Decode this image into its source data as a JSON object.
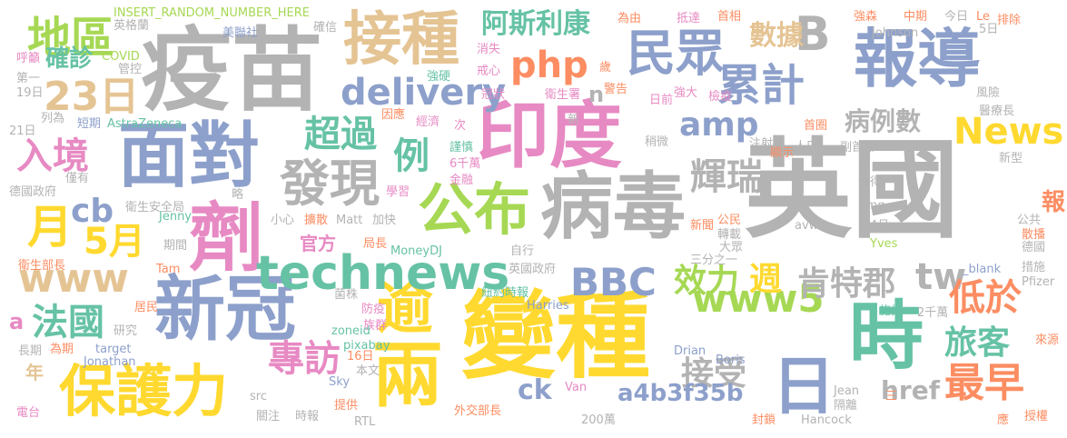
{
  "palette": {
    "gray": "#b3b3b3",
    "yellow": "#ffd92f",
    "blue": "#8da0cb",
    "green": "#66c2a5",
    "pink": "#e78ac3",
    "orange": "#fc8d62",
    "tan": "#e5c494",
    "lime": "#a6d854"
  },
  "words": [
    {
      "text": "英國",
      "color": "gray"
    },
    {
      "text": "變種",
      "color": "yellow"
    },
    {
      "text": "疫苗",
      "color": "gray"
    },
    {
      "text": "印度",
      "color": "pink"
    },
    {
      "text": "劑",
      "color": "pink"
    },
    {
      "text": "面對",
      "color": "blue"
    },
    {
      "text": "新冠",
      "color": "blue"
    },
    {
      "text": "病毒",
      "color": "gray"
    },
    {
      "text": "報導",
      "color": "blue"
    },
    {
      "text": "時",
      "color": "green"
    },
    {
      "text": "逾",
      "color": "yellow"
    },
    {
      "text": "兩",
      "color": "yellow"
    },
    {
      "text": "接種",
      "color": "tan"
    },
    {
      "text": "保護力",
      "color": "yellow"
    },
    {
      "text": "technews",
      "color": "green"
    },
    {
      "text": "公布",
      "color": "lime"
    },
    {
      "text": "民眾",
      "color": "blue"
    },
    {
      "text": "發現",
      "color": "gray"
    },
    {
      "text": "www",
      "color": "tan"
    },
    {
      "text": "www5",
      "color": "lime"
    },
    {
      "text": "BBC",
      "color": "blue"
    },
    {
      "text": "日",
      "color": "blue"
    },
    {
      "text": "地區",
      "color": "lime"
    },
    {
      "text": "23日",
      "color": "tan"
    },
    {
      "text": "累計",
      "color": "blue"
    },
    {
      "text": "delivery",
      "color": "blue"
    },
    {
      "text": "php",
      "color": "orange"
    },
    {
      "text": "B",
      "color": "gray"
    },
    {
      "text": "阿斯利康",
      "color": "green"
    },
    {
      "text": "News",
      "color": "yellow"
    },
    {
      "text": "amp",
      "color": "blue"
    },
    {
      "text": "超過",
      "color": "green"
    },
    {
      "text": "例",
      "color": "green"
    },
    {
      "text": "入境",
      "color": "pink"
    },
    {
      "text": "月",
      "color": "yellow"
    },
    {
      "text": "5月",
      "color": "yellow"
    },
    {
      "text": "cb",
      "color": "blue"
    },
    {
      "text": "輝瑞",
      "color": "gray"
    },
    {
      "text": "肯特郡",
      "color": "gray"
    },
    {
      "text": "tw",
      "color": "gray"
    },
    {
      "text": "效力",
      "color": "lime"
    },
    {
      "text": "週",
      "color": "yellow"
    },
    {
      "text": "法國",
      "color": "green"
    },
    {
      "text": "專訪",
      "color": "pink"
    },
    {
      "text": "低於",
      "color": "orange"
    },
    {
      "text": "旅客",
      "color": "green"
    },
    {
      "text": "最早",
      "color": "orange"
    },
    {
      "text": "接受",
      "color": "gray"
    },
    {
      "text": "a4b3f35b",
      "color": "blue"
    },
    {
      "text": "ck",
      "color": "blue"
    },
    {
      "text": "href",
      "color": "gray"
    },
    {
      "text": "病例數",
      "color": "gray"
    },
    {
      "text": "數據",
      "color": "tan"
    },
    {
      "text": "確診",
      "color": "green"
    },
    {
      "text": "官方",
      "color": "pink"
    },
    {
      "text": "報",
      "color": "orange"
    },
    {
      "text": "n",
      "color": "gray"
    },
    {
      "text": "a",
      "color": "pink"
    },
    {
      "text": "年",
      "color": "tan"
    },
    {
      "text": "INSERT_RANDOM_NUMBER_HERE",
      "color": "lime"
    },
    {
      "text": "英格蘭",
      "color": "gray"
    },
    {
      "text": "美聯社",
      "color": "blue"
    },
    {
      "text": "確信",
      "color": "gray"
    },
    {
      "text": "為由",
      "color": "orange"
    },
    {
      "text": "抵達",
      "color": "pink"
    },
    {
      "text": "首相",
      "color": "orange"
    },
    {
      "text": "強森",
      "color": "orange"
    },
    {
      "text": "中期",
      "color": "orange"
    },
    {
      "text": "今日",
      "color": "gray"
    },
    {
      "text": "Le",
      "color": "orange"
    },
    {
      "text": "5日",
      "color": "gray"
    },
    {
      "text": "排除",
      "color": "orange"
    },
    {
      "text": "Johnson",
      "color": "gray"
    },
    {
      "text": "呼籲",
      "color": "pink"
    },
    {
      "text": "COVID",
      "color": "lime"
    },
    {
      "text": "管控",
      "color": "gray"
    },
    {
      "text": "消失",
      "color": "pink"
    },
    {
      "text": "戒心",
      "color": "pink"
    },
    {
      "text": "強硬",
      "color": "green"
    },
    {
      "text": "歲",
      "color": "orange"
    },
    {
      "text": "冠狀",
      "color": "pink"
    },
    {
      "text": "衛生署",
      "color": "pink"
    },
    {
      "text": "警告",
      "color": "orange"
    },
    {
      "text": "日前",
      "color": "pink"
    },
    {
      "text": "強大",
      "color": "pink"
    },
    {
      "text": "檢疫",
      "color": "pink"
    },
    {
      "text": "第一",
      "color": "gray"
    },
    {
      "text": "19日",
      "color": "gray"
    },
    {
      "text": "列為",
      "color": "gray"
    },
    {
      "text": "21日",
      "color": "gray"
    },
    {
      "text": "短期",
      "color": "blue"
    },
    {
      "text": "AstraZeneca",
      "color": "green"
    },
    {
      "text": "因應",
      "color": "orange"
    },
    {
      "text": "經濟",
      "color": "pink"
    },
    {
      "text": "次",
      "color": "pink"
    },
    {
      "text": "謹慎",
      "color": "green"
    },
    {
      "text": "6千萬",
      "color": "pink"
    },
    {
      "text": "金融",
      "color": "pink"
    },
    {
      "text": "新",
      "color": "gray"
    },
    {
      "text": "稍微",
      "color": "gray"
    },
    {
      "text": "顯示",
      "color": "orange"
    },
    {
      "text": "人口",
      "color": "gray"
    },
    {
      "text": "首圈",
      "color": "orange"
    },
    {
      "text": "注射",
      "color": "gray"
    },
    {
      "text": "副首席",
      "color": "gray"
    },
    {
      "text": "風險",
      "color": "gray"
    },
    {
      "text": "醫療長",
      "color": "gray"
    },
    {
      "text": "新型",
      "color": "gray"
    },
    {
      "text": "值得",
      "color": "gray"
    },
    {
      "text": "德國政府",
      "color": "gray"
    },
    {
      "text": "僅有",
      "color": "gray"
    },
    {
      "text": "學習",
      "color": "pink"
    },
    {
      "text": "img",
      "color": "gray"
    },
    {
      "text": "衛生安全局",
      "color": "gray"
    },
    {
      "text": "略",
      "color": "gray"
    },
    {
      "text": "4月",
      "color": "gray"
    },
    {
      "text": "Jenny",
      "color": "green"
    },
    {
      "text": "小心",
      "color": "gray"
    },
    {
      "text": "擴散",
      "color": "orange"
    },
    {
      "text": "Matt",
      "color": "gray"
    },
    {
      "text": "加快",
      "color": "gray"
    },
    {
      "text": "公民",
      "color": "orange"
    },
    {
      "text": "轉載",
      "color": "gray"
    },
    {
      "text": "新聞",
      "color": "orange"
    },
    {
      "text": "avw",
      "color": "gray"
    },
    {
      "text": "公共",
      "color": "gray"
    },
    {
      "text": "期間",
      "color": "gray"
    },
    {
      "text": "局長",
      "color": "orange"
    },
    {
      "text": "MoneyDJ",
      "color": "green"
    },
    {
      "text": "自行",
      "color": "gray"
    },
    {
      "text": "大眾",
      "color": "gray"
    },
    {
      "text": "Yves",
      "color": "lime"
    },
    {
      "text": "散播",
      "color": "orange"
    },
    {
      "text": "德國",
      "color": "gray"
    },
    {
      "text": "衛生部長",
      "color": "orange"
    },
    {
      "text": "Tam",
      "color": "orange"
    },
    {
      "text": "英國政府",
      "color": "gray"
    },
    {
      "text": "三分之一",
      "color": "gray"
    },
    {
      "text": "_blank",
      "color": "blue"
    },
    {
      "text": "措施",
      "color": "gray"
    },
    {
      "text": "Pfizer",
      "color": "gray"
    },
    {
      "text": "居民",
      "color": "orange"
    },
    {
      "text": "菌株",
      "color": "gray"
    },
    {
      "text": "Harries",
      "color": "blue"
    },
    {
      "text": "紐約時報",
      "color": "green"
    },
    {
      "text": "施打",
      "color": "green"
    },
    {
      "text": "2千萬",
      "color": "gray"
    },
    {
      "text": "研究",
      "color": "gray"
    },
    {
      "text": "防疫",
      "color": "pink"
    },
    {
      "text": "族群",
      "color": "pink"
    },
    {
      "text": "zoneid",
      "color": "green"
    },
    {
      "text": "pixabay",
      "color": "green"
    },
    {
      "text": "長期",
      "color": "gray"
    },
    {
      "text": "為期",
      "color": "orange"
    },
    {
      "text": "target",
      "color": "blue"
    },
    {
      "text": "Jonathan",
      "color": "blue"
    },
    {
      "text": "16日",
      "color": "orange"
    },
    {
      "text": "本文",
      "color": "gray"
    },
    {
      "text": "Sky",
      "color": "blue"
    },
    {
      "text": "Drian",
      "color": "blue"
    },
    {
      "text": "Boris",
      "color": "blue"
    },
    {
      "text": "來源",
      "color": "orange"
    },
    {
      "text": "src",
      "color": "gray"
    },
    {
      "text": "Van",
      "color": "pink"
    },
    {
      "text": "Jean",
      "color": "gray"
    },
    {
      "text": "隔離",
      "color": "gray"
    },
    {
      "text": "三",
      "color": "orange"
    },
    {
      "text": "電台",
      "color": "pink"
    },
    {
      "text": "關注",
      "color": "gray"
    },
    {
      "text": "時報",
      "color": "gray"
    },
    {
      "text": "提供",
      "color": "orange"
    },
    {
      "text": "RTL",
      "color": "gray"
    },
    {
      "text": "外交部長",
      "color": "orange"
    },
    {
      "text": "200萬",
      "color": "gray"
    },
    {
      "text": "封鎖",
      "color": "orange"
    },
    {
      "text": "Hancock",
      "color": "gray"
    },
    {
      "text": "應",
      "color": "orange"
    },
    {
      "text": "授權",
      "color": "orange"
    }
  ]
}
